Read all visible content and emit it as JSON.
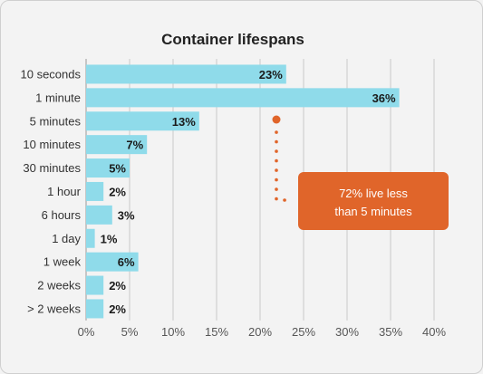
{
  "chart_data": {
    "type": "bar",
    "orientation": "horizontal",
    "title": "Container lifespans",
    "categories": [
      "10 seconds",
      "1 minute",
      "5 minutes",
      "10 minutes",
      "30 minutes",
      "1 hour",
      "6 hours",
      "1 day",
      "1 week",
      "2 weeks",
      "> 2 weeks"
    ],
    "values": [
      23,
      36,
      13,
      7,
      5,
      2,
      3,
      1,
      6,
      2,
      2
    ],
    "value_labels": [
      "23%",
      "36%",
      "13%",
      "7%",
      "5%",
      "2%",
      "3%",
      "1%",
      "6%",
      "2%",
      "2%"
    ],
    "x_ticks": [
      "0%",
      "5%",
      "10%",
      "15%",
      "20%",
      "25%",
      "30%",
      "35%",
      "40%"
    ],
    "xlim": [
      0,
      40
    ],
    "grid": "vertical",
    "xlabel": "",
    "ylabel": "",
    "annotation": {
      "text_line1": "72% live less",
      "text_line2": "than 5 minutes"
    },
    "colors": {
      "bar": "#8fdbea",
      "grid": "#c8c8c8",
      "axis": "#9a9a9a",
      "text": "#333333",
      "accent": "#e0652a",
      "background": "#f3f3f3"
    }
  }
}
